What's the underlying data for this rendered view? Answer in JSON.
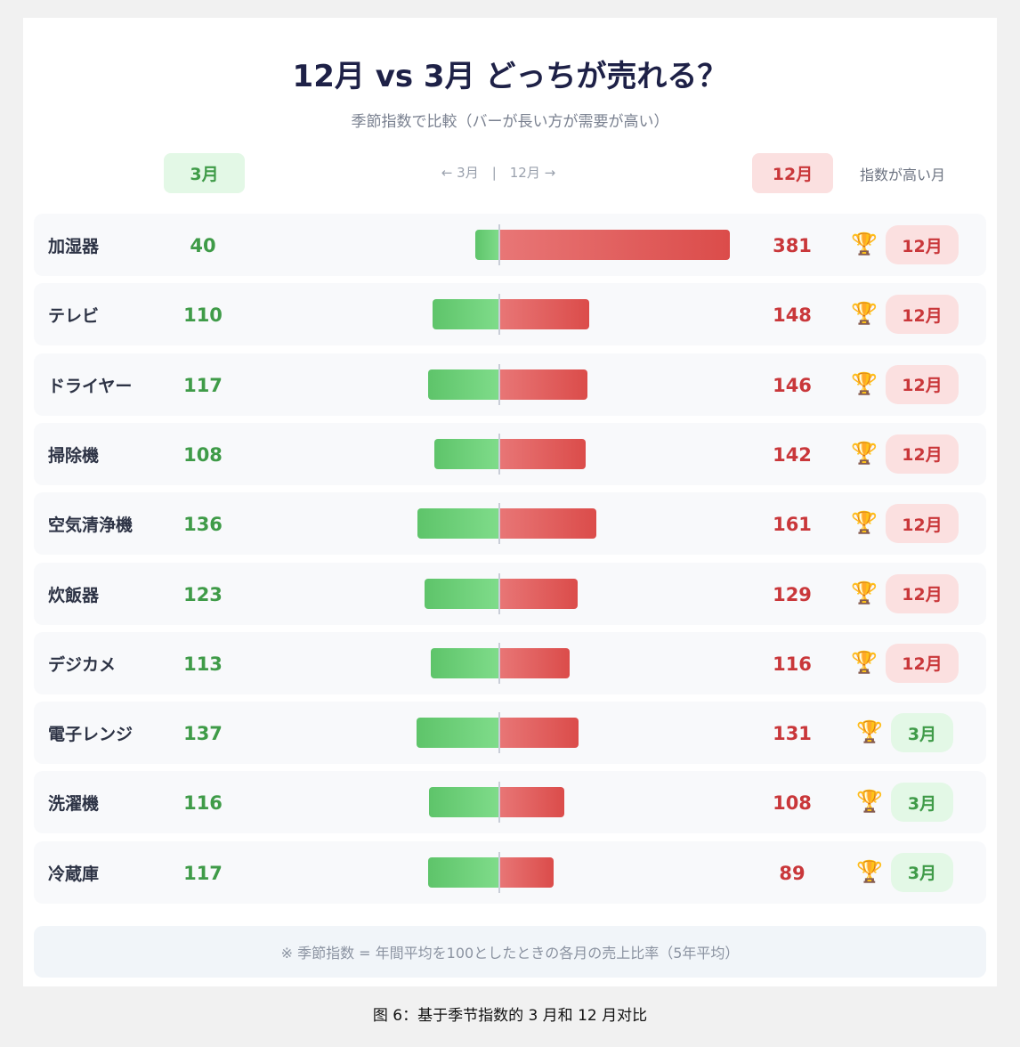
{
  "title": "12月 vs 3月 どっちが売れる？",
  "subtitle": "季節指数で比較（バーが長い方が需要が高い）",
  "header": {
    "march": "3月",
    "axis_label": "← 3月　|　12月 →",
    "december": "12月",
    "winner": "指数が高い月"
  },
  "chart_data": {
    "type": "bar",
    "orientation": "diverging-horizontal",
    "series": [
      {
        "name": "3月",
        "color": "#5ec46a"
      },
      {
        "name": "12月",
        "color": "#db4c4a"
      }
    ],
    "rows": [
      {
        "category": "加湿器",
        "march": 40,
        "december": 381,
        "winner": "12月"
      },
      {
        "category": "テレビ",
        "march": 110,
        "december": 148,
        "winner": "12月"
      },
      {
        "category": "ドライヤー",
        "march": 117,
        "december": 146,
        "winner": "12月"
      },
      {
        "category": "掃除機",
        "march": 108,
        "december": 142,
        "winner": "12月"
      },
      {
        "category": "空気清浄機",
        "march": 136,
        "december": 161,
        "winner": "12月"
      },
      {
        "category": "炊飯器",
        "march": 123,
        "december": 129,
        "winner": "12月"
      },
      {
        "category": "デジカメ",
        "march": 113,
        "december": 116,
        "winner": "12月"
      },
      {
        "category": "電子レンジ",
        "march": 137,
        "december": 131,
        "winner": "3月"
      },
      {
        "category": "洗濯機",
        "march": 116,
        "december": 108,
        "winner": "3月"
      },
      {
        "category": "冷蔵庫",
        "march": 117,
        "december": 89,
        "winner": "3月"
      }
    ]
  },
  "trophy_icon": "🏆",
  "note": "※ 季節指数 = 年間平均を100としたときの各月の売上比率（5年平均）",
  "caption": "图 6：基于季节指数的 3 月和 12 月对比"
}
